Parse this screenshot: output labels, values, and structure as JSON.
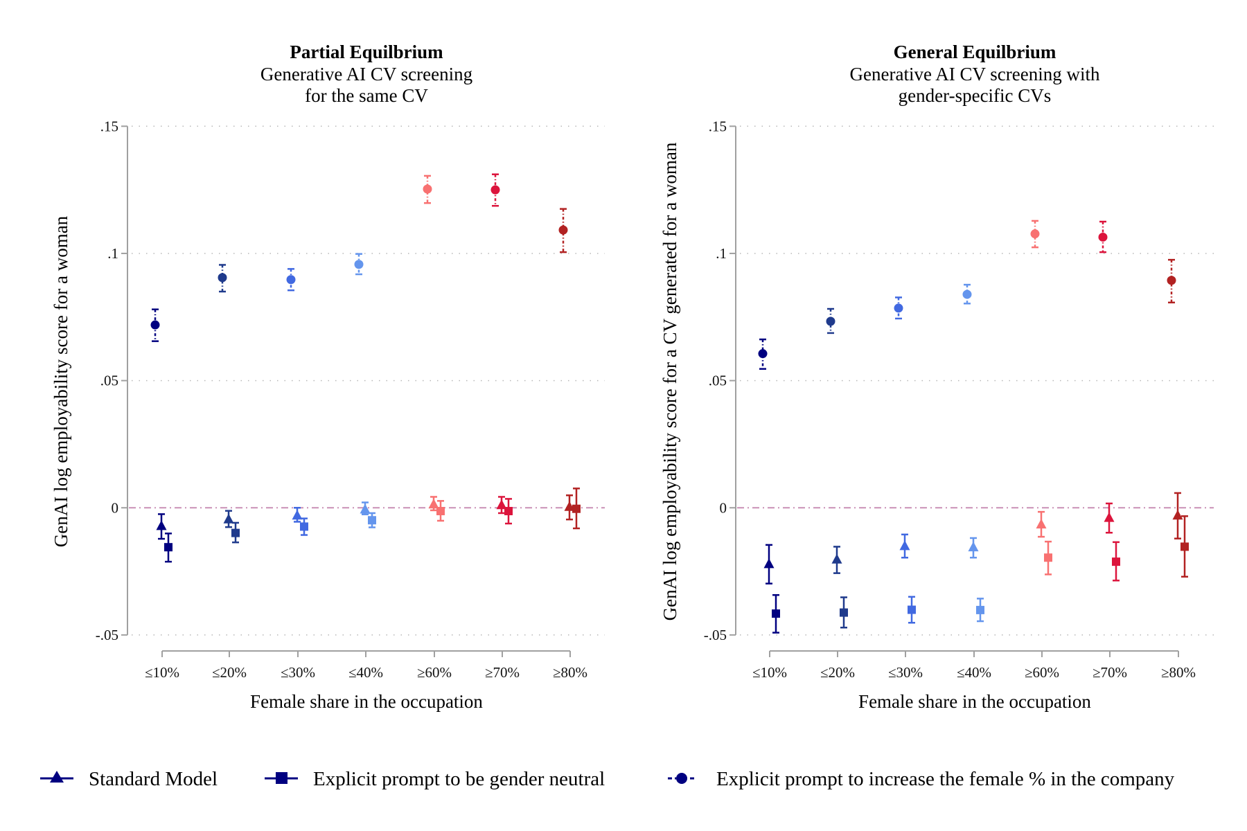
{
  "colors": {
    "categories": [
      "#000080",
      "#1f3a8c",
      "#4169e1",
      "#6495ed",
      "#f87171",
      "#dc143c",
      "#b22222"
    ],
    "zero_line": "#c98fb5",
    "axis": "#a0a0a0",
    "grid": "#b8b8b8",
    "legend_marker": "#000080"
  },
  "legend": {
    "items": [
      {
        "label": "Standard Model",
        "marker": "triangle",
        "line": "solid"
      },
      {
        "label": "Explicit prompt to be gender neutral",
        "marker": "square",
        "line": "solid"
      },
      {
        "label": "Explicit prompt to increase the female % in the company",
        "marker": "circle",
        "line": "dashdot"
      }
    ]
  },
  "chart_data": [
    {
      "type": "scatter",
      "title": "Partial Equilbrium",
      "subtitle_lines": [
        "Generative AI CV screening",
        "for the same CV"
      ],
      "xlabel": "Female share in the occupation",
      "ylabel": "GenAI log employability score for a woman",
      "categories": [
        "≤10%",
        "≤20%",
        "≤30%",
        "≤40%",
        "≥60%",
        "≥70%",
        "≥80%"
      ],
      "ylim": [
        -0.05,
        0.15
      ],
      "yticks": [
        -0.05,
        0,
        0.05,
        0.1,
        0.15
      ],
      "ytick_labels": [
        "-.05",
        "0",
        ".05",
        ".1",
        ".15"
      ],
      "grid": true,
      "reference_line": 0,
      "series": [
        {
          "name": "Standard Model",
          "marker": "triangle",
          "values": [
            -0.0071,
            -0.0045,
            -0.003,
            -0.0006,
            0.0014,
            0.0011,
            0.0004
          ],
          "ci_low": [
            -0.0122,
            -0.0076,
            -0.0055,
            -0.0026,
            -0.001,
            -0.0021,
            -0.0046
          ],
          "ci_high": [
            -0.0025,
            -0.0012,
            0.0,
            0.0021,
            0.0043,
            0.0043,
            0.0049
          ]
        },
        {
          "name": "Explicit prompt to be gender neutral",
          "marker": "square",
          "values": [
            -0.0155,
            -0.0099,
            -0.0074,
            -0.0049,
            -0.0013,
            -0.0013,
            -0.0004
          ],
          "ci_low": [
            -0.0212,
            -0.0136,
            -0.0107,
            -0.0077,
            -0.0051,
            -0.0062,
            -0.0081
          ],
          "ci_high": [
            -0.0101,
            -0.0059,
            -0.0042,
            -0.0021,
            0.0027,
            0.0035,
            0.0076
          ]
        },
        {
          "name": "Explicit prompt to increase the female % in the company",
          "marker": "circle",
          "values": [
            0.0719,
            0.0905,
            0.0897,
            0.0957,
            0.1253,
            0.125,
            0.1092
          ],
          "ci_low": [
            0.0655,
            0.085,
            0.0855,
            0.0918,
            0.1198,
            0.1187,
            0.1005
          ],
          "ci_high": [
            0.078,
            0.0955,
            0.0939,
            0.0998,
            0.1305,
            0.1311,
            0.1175
          ]
        }
      ]
    },
    {
      "type": "scatter",
      "title": "General Equilbrium",
      "subtitle_lines": [
        "Generative AI CV screening with",
        "gender-specific CVs"
      ],
      "xlabel": "Female share in the occupation",
      "ylabel": "GenAI log employability score for a CV generated for a woman",
      "categories": [
        "≤10%",
        "≤20%",
        "≤30%",
        "≤40%",
        "≥60%",
        "≥70%",
        "≥80%"
      ],
      "ylim": [
        -0.05,
        0.15
      ],
      "yticks": [
        -0.05,
        0,
        0.05,
        0.1,
        0.15
      ],
      "ytick_labels": [
        "-.05",
        "0",
        ".05",
        ".1",
        ".15"
      ],
      "grid": true,
      "reference_line": 0,
      "series": [
        {
          "name": "Standard Model",
          "marker": "triangle",
          "values": [
            -0.0221,
            -0.0203,
            -0.015,
            -0.0155,
            -0.0065,
            -0.0039,
            -0.003
          ],
          "ci_low": [
            -0.0298,
            -0.0257,
            -0.0196,
            -0.0196,
            -0.0114,
            -0.0098,
            -0.0121
          ],
          "ci_high": [
            -0.0146,
            -0.0153,
            -0.0105,
            -0.0119,
            -0.0016,
            0.0017,
            0.0058
          ]
        },
        {
          "name": "Explicit prompt to be gender neutral",
          "marker": "square",
          "values": [
            -0.0416,
            -0.0412,
            -0.0401,
            -0.0402,
            -0.0196,
            -0.0212,
            -0.0153
          ],
          "ci_low": [
            -0.0491,
            -0.0471,
            -0.0452,
            -0.0446,
            -0.0262,
            -0.0286,
            -0.0271
          ],
          "ci_high": [
            -0.0343,
            -0.0352,
            -0.035,
            -0.0357,
            -0.0133,
            -0.0135,
            -0.0033
          ]
        },
        {
          "name": "Explicit prompt to increase the female % in the company",
          "marker": "circle",
          "values": [
            0.0606,
            0.0733,
            0.0785,
            0.0839,
            0.1077,
            0.1064,
            0.0894
          ],
          "ci_low": [
            0.0546,
            0.0687,
            0.0744,
            0.0803,
            0.1024,
            0.1005,
            0.0807
          ],
          "ci_high": [
            0.0662,
            0.0782,
            0.0827,
            0.0877,
            0.1128,
            0.1125,
            0.0975
          ]
        }
      ]
    }
  ]
}
